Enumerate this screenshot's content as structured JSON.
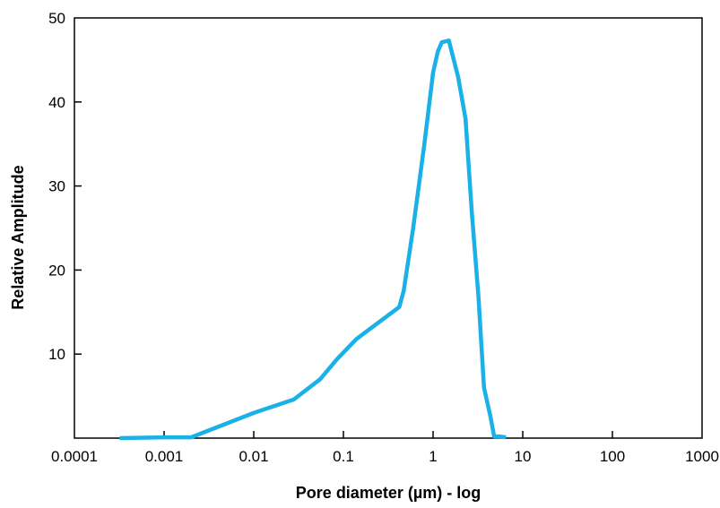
{
  "chart_data": {
    "type": "line",
    "title": "",
    "xlabel": "Pore diameter (µm) - log",
    "ylabel": "Relative Amplitude",
    "xscale": "log",
    "xlim": [
      0.0001,
      1000
    ],
    "ylim": [
      0,
      50
    ],
    "grid": false,
    "line_color": "#1ab0e8",
    "x_ticks": [
      {
        "value": 0.0001,
        "label": "0.0001"
      },
      {
        "value": 0.001,
        "label": "0.001"
      },
      {
        "value": 0.01,
        "label": "0.01"
      },
      {
        "value": 0.1,
        "label": "0.1"
      },
      {
        "value": 1,
        "label": "1"
      },
      {
        "value": 10,
        "label": "10"
      },
      {
        "value": 100,
        "label": "100"
      },
      {
        "value": 1000,
        "label": "1000"
      }
    ],
    "y_ticks": [
      {
        "value": 10,
        "label": "10"
      },
      {
        "value": 20,
        "label": "20"
      },
      {
        "value": 30,
        "label": "30"
      },
      {
        "value": 40,
        "label": "40"
      },
      {
        "value": 50,
        "label": "50"
      }
    ],
    "series": [
      {
        "x": [
          0.00032,
          0.001,
          0.002,
          0.01,
          0.028,
          0.055,
          0.085,
          0.14,
          0.42,
          0.47,
          0.6,
          0.8,
          1.0,
          1.13,
          1.25,
          1.5,
          1.9,
          2.3,
          2.7,
          3.2,
          3.7,
          4.4,
          4.8,
          5.5,
          6.5
        ],
        "y": [
          0.0,
          0.1,
          0.1,
          3.0,
          4.6,
          7.0,
          9.4,
          11.8,
          15.6,
          17.5,
          25.0,
          35.0,
          43.5,
          46.0,
          47.1,
          47.3,
          43.0,
          38.0,
          27.0,
          17.0,
          6.0,
          2.4,
          0.2,
          0.2,
          0.1
        ]
      }
    ]
  }
}
